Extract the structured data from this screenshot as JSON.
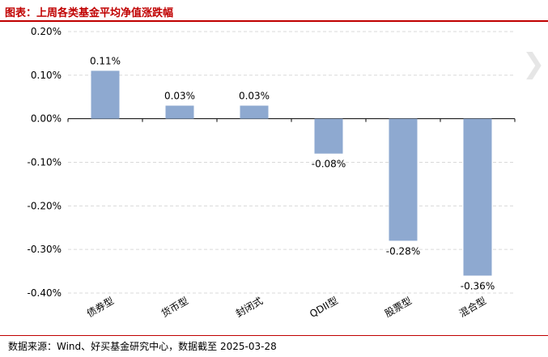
{
  "header": {
    "title": "图表：上周各类基金平均净值涨跌幅"
  },
  "footer": {
    "source": "数据来源：Wind、好买基金研究中心，数据截至 2025-03-28"
  },
  "colors": {
    "title": "#c00000",
    "rule": "#c00000",
    "bar": "#8ea9d0",
    "grid": "#d9d9d9"
  },
  "chart_data": {
    "type": "bar",
    "categories": [
      "债券型",
      "货币型",
      "封闭式",
      "QDII型",
      "股票型",
      "混合型"
    ],
    "values": [
      0.11,
      0.03,
      0.03,
      -0.08,
      -0.28,
      -0.36
    ],
    "value_labels": [
      "0.11%",
      "0.03%",
      "0.03%",
      "-0.08%",
      "-0.28%",
      "-0.36%"
    ],
    "ylim": [
      -0.4,
      0.2
    ],
    "yticks": [
      0.2,
      0.1,
      0.0,
      -0.1,
      -0.2,
      -0.3,
      -0.4
    ],
    "ytick_labels": [
      "0.20%",
      "0.10%",
      "0.00%",
      "-0.10%",
      "-0.20%",
      "-0.30%",
      "-0.40%"
    ],
    "grid": true,
    "legend": "none"
  }
}
